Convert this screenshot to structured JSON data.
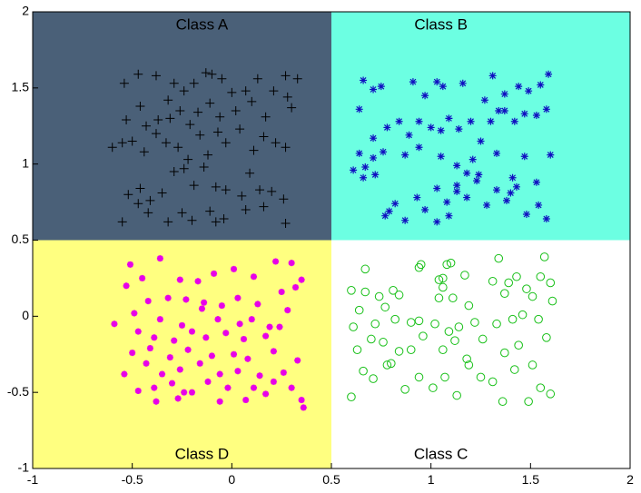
{
  "chart_data": {
    "type": "scatter",
    "xlim": [
      -1,
      2
    ],
    "ylim": [
      -1,
      2
    ],
    "xticks": [
      -1,
      -0.5,
      0,
      0.5,
      1,
      1.5,
      2
    ],
    "yticks": [
      -1,
      -0.5,
      0,
      0.5,
      1,
      1.5,
      2
    ],
    "xtick_labels": [
      "-1",
      "-0.5",
      "0",
      "0.5",
      "1",
      "1.5",
      "2"
    ],
    "ytick_labels": [
      "-1",
      "-0.5",
      "0",
      "0.5",
      "1",
      "1.5",
      "2"
    ],
    "regions": [
      {
        "name": "Class A",
        "x": [
          -1,
          0.5
        ],
        "y": [
          0.5,
          2
        ],
        "color": "#4a6078"
      },
      {
        "name": "Class B",
        "x": [
          0.5,
          2
        ],
        "y": [
          0.5,
          2
        ],
        "color": "#6cffe2"
      },
      {
        "name": "Class D",
        "x": [
          -1,
          0.5
        ],
        "y": [
          -1,
          0.5
        ],
        "color": "#ffff80"
      },
      {
        "name": "Class C",
        "x": [
          0.5,
          2
        ],
        "y": [
          -1,
          0.5
        ],
        "color": "#ffffff"
      }
    ],
    "series": [
      {
        "name": "Class A",
        "marker": "plus",
        "color": "#000000",
        "points": [
          [
            -0.54,
            1.53
          ],
          [
            -0.47,
            1.59
          ],
          [
            -0.38,
            1.58
          ],
          [
            -0.32,
            1.42
          ],
          [
            -0.29,
            1.53
          ],
          [
            -0.24,
            1.48
          ],
          [
            -0.19,
            1.53
          ],
          [
            -0.13,
            1.6
          ],
          [
            -0.1,
            1.59
          ],
          [
            -0.05,
            1.56
          ],
          [
            0.0,
            1.47
          ],
          [
            0.07,
            1.48
          ],
          [
            0.13,
            1.56
          ],
          [
            0.21,
            1.48
          ],
          [
            0.27,
            1.58
          ],
          [
            0.33,
            1.56
          ],
          [
            -0.53,
            1.29
          ],
          [
            -0.46,
            1.38
          ],
          [
            -0.43,
            1.25
          ],
          [
            -0.37,
            1.29
          ],
          [
            -0.31,
            1.3
          ],
          [
            -0.26,
            1.35
          ],
          [
            -0.21,
            1.26
          ],
          [
            -0.17,
            1.34
          ],
          [
            -0.11,
            1.4
          ],
          [
            -0.06,
            1.31
          ],
          [
            0.02,
            1.35
          ],
          [
            0.1,
            1.41
          ],
          [
            0.17,
            1.31
          ],
          [
            0.28,
            1.44
          ],
          [
            0.3,
            1.37
          ],
          [
            -0.6,
            1.11
          ],
          [
            -0.55,
            1.14
          ],
          [
            -0.5,
            1.15
          ],
          [
            -0.44,
            1.08
          ],
          [
            -0.38,
            1.2
          ],
          [
            -0.33,
            1.14
          ],
          [
            -0.27,
            1.11
          ],
          [
            -0.22,
            1.03
          ],
          [
            -0.16,
            1.19
          ],
          [
            -0.12,
            1.06
          ],
          [
            -0.07,
            1.21
          ],
          [
            -0.03,
            1.14
          ],
          [
            0.04,
            1.23
          ],
          [
            0.11,
            1.09
          ],
          [
            0.16,
            1.18
          ],
          [
            0.22,
            1.14
          ],
          [
            0.27,
            1.11
          ],
          [
            -0.52,
            0.8
          ],
          [
            -0.46,
            0.84
          ],
          [
            -0.41,
            0.76
          ],
          [
            -0.35,
            0.81
          ],
          [
            -0.29,
            0.95
          ],
          [
            -0.24,
            0.97
          ],
          [
            -0.19,
            0.86
          ],
          [
            -0.14,
            0.98
          ],
          [
            -0.08,
            0.85
          ],
          [
            -0.03,
            0.83
          ],
          [
            0.05,
            0.79
          ],
          [
            0.09,
            0.94
          ],
          [
            0.14,
            0.83
          ],
          [
            0.2,
            0.82
          ],
          [
            0.26,
            0.77
          ],
          [
            -0.55,
            0.62
          ],
          [
            -0.47,
            0.74
          ],
          [
            -0.42,
            0.68
          ],
          [
            -0.32,
            0.62
          ],
          [
            -0.25,
            0.68
          ],
          [
            -0.2,
            0.63
          ],
          [
            -0.11,
            0.69
          ],
          [
            -0.08,
            0.62
          ],
          [
            -0.04,
            0.64
          ],
          [
            0.07,
            0.7
          ],
          [
            0.16,
            0.72
          ],
          [
            0.27,
            0.61
          ]
        ]
      },
      {
        "name": "Class B",
        "marker": "star",
        "color": "#1010c0",
        "points": [
          [
            0.66,
            1.55
          ],
          [
            0.71,
            1.49
          ],
          [
            0.75,
            1.51
          ],
          [
            0.91,
            1.54
          ],
          [
            0.97,
            1.45
          ],
          [
            1.03,
            1.54
          ],
          [
            1.06,
            1.51
          ],
          [
            1.16,
            1.53
          ],
          [
            1.27,
            1.42
          ],
          [
            1.31,
            1.58
          ],
          [
            1.37,
            1.46
          ],
          [
            1.44,
            1.51
          ],
          [
            1.49,
            1.48
          ],
          [
            1.55,
            1.52
          ],
          [
            1.59,
            1.59
          ],
          [
            0.64,
            1.36
          ],
          [
            0.71,
            1.17
          ],
          [
            0.78,
            1.24
          ],
          [
            0.84,
            1.28
          ],
          [
            0.89,
            1.19
          ],
          [
            0.94,
            1.28
          ],
          [
            1.0,
            1.24
          ],
          [
            1.05,
            1.22
          ],
          [
            1.09,
            1.3
          ],
          [
            1.14,
            1.23
          ],
          [
            1.2,
            1.28
          ],
          [
            1.25,
            1.15
          ],
          [
            1.3,
            1.28
          ],
          [
            1.34,
            1.35
          ],
          [
            1.37,
            1.35
          ],
          [
            1.42,
            1.28
          ],
          [
            1.47,
            1.33
          ],
          [
            1.53,
            1.32
          ],
          [
            1.58,
            1.36
          ],
          [
            0.61,
            0.96
          ],
          [
            0.64,
            1.07
          ],
          [
            0.67,
            0.98
          ],
          [
            0.71,
            1.04
          ],
          [
            0.76,
            1.08
          ],
          [
            0.66,
            0.91
          ],
          [
            0.72,
            0.93
          ],
          [
            0.87,
            1.06
          ],
          [
            0.94,
            1.11
          ],
          [
            1.05,
            1.05
          ],
          [
            1.13,
            0.99
          ],
          [
            1.18,
            0.94
          ],
          [
            1.21,
            1.03
          ],
          [
            1.24,
            0.93
          ],
          [
            1.33,
            1.07
          ],
          [
            1.41,
            0.91
          ],
          [
            1.47,
            1.05
          ],
          [
            1.53,
            0.88
          ],
          [
            1.6,
            1.06
          ],
          [
            0.79,
            0.69
          ],
          [
            0.82,
            0.74
          ],
          [
            0.87,
            0.63
          ],
          [
            0.93,
            0.78
          ],
          [
            0.97,
            0.7
          ],
          [
            1.03,
            0.84
          ],
          [
            1.08,
            0.75
          ],
          [
            1.13,
            0.86
          ],
          [
            1.18,
            0.78
          ],
          [
            1.23,
            0.89
          ],
          [
            1.28,
            0.73
          ],
          [
            1.33,
            0.83
          ],
          [
            1.38,
            0.76
          ],
          [
            1.43,
            0.85
          ],
          [
            1.48,
            0.67
          ],
          [
            1.54,
            0.73
          ],
          [
            1.58,
            0.64
          ],
          [
            1.03,
            0.62
          ],
          [
            1.09,
            0.66
          ],
          [
            1.4,
            0.81
          ],
          [
            1.13,
            0.82
          ],
          [
            0.77,
            0.66
          ]
        ]
      },
      {
        "name": "Class D",
        "marker": "asterisk",
        "color": "#e800e8",
        "points": [
          [
            -0.36,
            0.38
          ],
          [
            -0.51,
            0.34
          ],
          [
            -0.26,
            0.24
          ],
          [
            -0.17,
            0.23
          ],
          [
            -0.09,
            0.28
          ],
          [
            0.01,
            0.31
          ],
          [
            0.11,
            0.26
          ],
          [
            0.22,
            0.36
          ],
          [
            0.3,
            0.35
          ],
          [
            0.35,
            0.24
          ],
          [
            -0.53,
            0.2
          ],
          [
            -0.45,
            0.25
          ],
          [
            -0.32,
            0.12
          ],
          [
            -0.23,
            0.11
          ],
          [
            -0.14,
            0.09
          ],
          [
            -0.05,
            0.07
          ],
          [
            0.03,
            0.12
          ],
          [
            0.13,
            0.08
          ],
          [
            0.25,
            0.16
          ],
          [
            0.32,
            0.19
          ],
          [
            -0.49,
            0.02
          ],
          [
            -0.42,
            0.1
          ],
          [
            -0.36,
            -0.02
          ],
          [
            -0.25,
            -0.06
          ],
          [
            -0.15,
            0.05
          ],
          [
            -0.07,
            -0.02
          ],
          [
            0.04,
            -0.05
          ],
          [
            0.1,
            -0.02
          ],
          [
            0.19,
            -0.07
          ],
          [
            0.28,
            0.04
          ],
          [
            -0.59,
            -0.05
          ],
          [
            -0.47,
            -0.1
          ],
          [
            -0.39,
            -0.14
          ],
          [
            -0.29,
            -0.16
          ],
          [
            -0.2,
            -0.1
          ],
          [
            -0.13,
            -0.14
          ],
          [
            -0.03,
            -0.11
          ],
          [
            0.06,
            -0.15
          ],
          [
            0.17,
            -0.13
          ],
          [
            0.24,
            -0.07
          ],
          [
            -0.5,
            -0.24
          ],
          [
            -0.41,
            -0.21
          ],
          [
            -0.31,
            -0.27
          ],
          [
            -0.22,
            -0.22
          ],
          [
            -0.1,
            -0.26
          ],
          [
            0.01,
            -0.25
          ],
          [
            0.08,
            -0.28
          ],
          [
            0.21,
            -0.23
          ],
          [
            0.33,
            -0.29
          ],
          [
            -0.54,
            -0.38
          ],
          [
            -0.43,
            -0.31
          ],
          [
            -0.35,
            -0.38
          ],
          [
            -0.26,
            -0.35
          ],
          [
            -0.16,
            -0.31
          ],
          [
            -0.06,
            -0.38
          ],
          [
            0.03,
            -0.36
          ],
          [
            0.14,
            -0.39
          ],
          [
            0.26,
            -0.37
          ],
          [
            -0.47,
            -0.49
          ],
          [
            -0.39,
            -0.47
          ],
          [
            -0.3,
            -0.44
          ],
          [
            -0.2,
            -0.5
          ],
          [
            -0.12,
            -0.43
          ],
          [
            -0.02,
            -0.47
          ],
          [
            0.11,
            -0.47
          ],
          [
            0.21,
            -0.43
          ],
          [
            0.3,
            -0.47
          ],
          [
            -0.38,
            -0.56
          ],
          [
            -0.27,
            -0.54
          ],
          [
            -0.06,
            -0.56
          ],
          [
            0.17,
            -0.51
          ],
          [
            0.35,
            -0.55
          ],
          [
            0.36,
            -0.6
          ],
          [
            -0.24,
            -0.5
          ],
          [
            0.07,
            -0.55
          ]
        ]
      },
      {
        "name": "Class C",
        "marker": "circle",
        "color": "#18c018",
        "points": [
          [
            0.67,
            0.31
          ],
          [
            0.94,
            0.32
          ],
          [
            0.95,
            0.34
          ],
          [
            1.08,
            0.34
          ],
          [
            1.1,
            0.35
          ],
          [
            1.34,
            0.38
          ],
          [
            1.57,
            0.39
          ],
          [
            0.6,
            0.17
          ],
          [
            0.67,
            0.16
          ],
          [
            0.74,
            0.13
          ],
          [
            0.81,
            0.17
          ],
          [
            0.84,
            0.14
          ],
          [
            1.04,
            0.24
          ],
          [
            1.06,
            0.25
          ],
          [
            1.17,
            0.27
          ],
          [
            1.31,
            0.23
          ],
          [
            1.39,
            0.22
          ],
          [
            1.43,
            0.26
          ],
          [
            1.55,
            0.26
          ],
          [
            1.6,
            0.22
          ],
          [
            0.64,
            0.04
          ],
          [
            0.77,
            0.06
          ],
          [
            1.06,
            0.19
          ],
          [
            1.04,
            0.12
          ],
          [
            1.11,
            0.12
          ],
          [
            1.19,
            0.07
          ],
          [
            1.37,
            0.15
          ],
          [
            1.48,
            0.18
          ],
          [
            1.51,
            0.13
          ],
          [
            1.61,
            0.1
          ],
          [
            0.61,
            -0.07
          ],
          [
            0.72,
            -0.05
          ],
          [
            0.82,
            -0.02
          ],
          [
            0.9,
            -0.04
          ],
          [
            0.94,
            -0.03
          ],
          [
            1.02,
            -0.05
          ],
          [
            1.09,
            -0.1
          ],
          [
            1.14,
            -0.07
          ],
          [
            1.22,
            -0.04
          ],
          [
            1.33,
            -0.05
          ],
          [
            1.41,
            -0.02
          ],
          [
            1.46,
            0.01
          ],
          [
            1.54,
            -0.02
          ],
          [
            0.63,
            -0.22
          ],
          [
            0.7,
            -0.15
          ],
          [
            0.76,
            -0.17
          ],
          [
            0.84,
            -0.23
          ],
          [
            0.9,
            -0.22
          ],
          [
            0.96,
            -0.13
          ],
          [
            1.06,
            -0.22
          ],
          [
            1.12,
            -0.16
          ],
          [
            1.18,
            -0.28
          ],
          [
            1.26,
            -0.15
          ],
          [
            1.37,
            -0.24
          ],
          [
            1.44,
            -0.19
          ],
          [
            1.51,
            -0.32
          ],
          [
            1.58,
            -0.14
          ],
          [
            0.66,
            -0.36
          ],
          [
            0.71,
            -0.41
          ],
          [
            0.78,
            -0.32
          ],
          [
            0.87,
            -0.48
          ],
          [
            0.94,
            -0.4
          ],
          [
            1.01,
            -0.47
          ],
          [
            1.07,
            -0.4
          ],
          [
            1.13,
            -0.52
          ],
          [
            1.19,
            -0.32
          ],
          [
            1.25,
            -0.4
          ],
          [
            1.31,
            -0.43
          ],
          [
            1.36,
            -0.56
          ],
          [
            1.42,
            -0.35
          ],
          [
            1.49,
            -0.56
          ],
          [
            1.55,
            -0.47
          ],
          [
            1.6,
            -0.51
          ],
          [
            0.6,
            -0.53
          ],
          [
            0.8,
            -0.31
          ]
        ]
      }
    ]
  }
}
